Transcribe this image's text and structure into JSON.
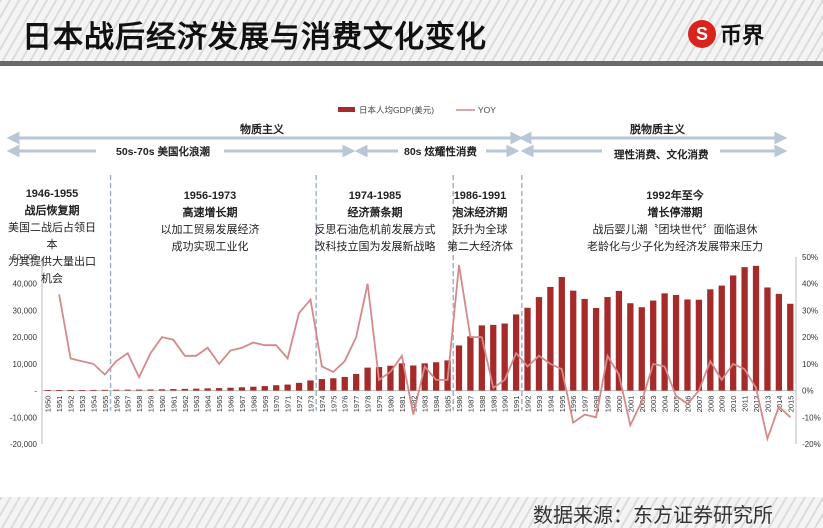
{
  "header": {
    "title": "日本战后经济发展与消费文化变化",
    "logo_symbol": "S",
    "logo_text": "币界"
  },
  "footer": {
    "source": "数据来源：东方证券研究所"
  },
  "legend": {
    "gdp": "日本人均GDP(美元)",
    "yoy": "YOY"
  },
  "eras": [
    {
      "label": "物质主义"
    },
    {
      "label": "脱物质主义"
    }
  ],
  "sub_eras": [
    {
      "label": "50s-70s 美国化浪潮"
    },
    {
      "label": "80s 炫耀性消费"
    },
    {
      "label": "理性消费、文化消费"
    }
  ],
  "periods": [
    {
      "years": "1946-1955",
      "name": "战后恢复期",
      "desc1": "美国二战后占领日本",
      "desc2": "为其提供大量出口机会"
    },
    {
      "years": "1956-1973",
      "name": "高速增长期",
      "desc1": "以加工贸易发展经济",
      "desc2": "成功实现工业化"
    },
    {
      "years": "1974-1985",
      "name": "经济萧条期",
      "desc1": "反思石油危机前发展方式",
      "desc2": "改科技立国为发展新战略"
    },
    {
      "years": "1986-1991",
      "name": "泡沫经济期",
      "desc1": "跃升为全球",
      "desc2": "第二大经济体"
    },
    {
      "years": "1992年至今",
      "name": "增长停滞期",
      "desc1": "战后婴儿潮〝团块世代〞面临退休",
      "desc2": "老龄化与少子化为经济发展带来压力"
    }
  ],
  "colors": {
    "bar": "#a52a2a",
    "line": "#d48a8a",
    "divider": "#9fb3cc",
    "arrow": "#b9c6d6"
  },
  "chart_data": {
    "type": "bar+line",
    "title": "日本战后经济发展与消费文化变化",
    "x": [
      1950,
      1951,
      1952,
      1953,
      1954,
      1955,
      1956,
      1957,
      1958,
      1959,
      1960,
      1961,
      1962,
      1963,
      1964,
      1965,
      1966,
      1967,
      1968,
      1969,
      1970,
      1971,
      1972,
      1973,
      1974,
      1975,
      1976,
      1977,
      1978,
      1979,
      1980,
      1981,
      1982,
      1983,
      1984,
      1985,
      1986,
      1987,
      1988,
      1989,
      1990,
      1991,
      1992,
      1993,
      1994,
      1995,
      1996,
      1997,
      1998,
      1999,
      2000,
      2001,
      2002,
      2003,
      2004,
      2005,
      2006,
      2007,
      2008,
      2009,
      2010,
      2011,
      2012,
      2013,
      2014,
      2015
    ],
    "series": [
      {
        "name": "日本人均GDP(美元)",
        "type": "bar",
        "axis": "left",
        "values": [
          150,
          180,
          200,
          220,
          240,
          270,
          300,
          330,
          360,
          400,
          470,
          560,
          630,
          720,
          830,
          920,
          1060,
          1230,
          1450,
          1670,
          2000,
          2250,
          2900,
          3800,
          4300,
          4600,
          5100,
          6200,
          8600,
          8800,
          9300,
          10200,
          9400,
          10200,
          10600,
          11300,
          16900,
          20300,
          24400,
          24600,
          25100,
          28500,
          31000,
          35000,
          38800,
          42500,
          37400,
          34300,
          30900,
          35000,
          37300,
          32700,
          31200,
          33700,
          36400,
          35800,
          34100,
          34000,
          37900,
          39300,
          43100,
          46200,
          46700,
          38600,
          36200,
          32500
        ]
      },
      {
        "name": "YOY",
        "type": "line",
        "axis": "right",
        "values": [
          null,
          36,
          12,
          11,
          10,
          6,
          11,
          14,
          5,
          14,
          20,
          19,
          13,
          13,
          16,
          10,
          15,
          16,
          18,
          17,
          17,
          12,
          29,
          34,
          9,
          7,
          11,
          20,
          40,
          4,
          7,
          13,
          -9,
          9,
          4,
          4,
          47,
          20,
          20,
          1,
          4,
          14,
          9,
          13,
          10,
          8,
          -12,
          -9,
          -10,
          13,
          6,
          -13,
          -4,
          10,
          9,
          -2,
          -5,
          0,
          11,
          4,
          10,
          8,
          1,
          -18,
          -6,
          -10
        ]
      }
    ],
    "ylabel_left": "",
    "ylabel_right": "",
    "ylim_left": [
      -20000,
      50000
    ],
    "yticks_left": [
      "50,000",
      "40,000",
      "30,000",
      "20,000",
      "10,000",
      "-",
      "-10,000",
      "-20,000"
    ],
    "ylim_right": [
      -20,
      50
    ],
    "yticks_right": [
      "50%",
      "40%",
      "30%",
      "20%",
      "10%",
      "0%",
      "-10%",
      "-20%"
    ],
    "legend_position": "top",
    "grid": false,
    "period_dividers": [
      1955.5,
      1973.5,
      1985.5,
      1991.5
    ]
  }
}
